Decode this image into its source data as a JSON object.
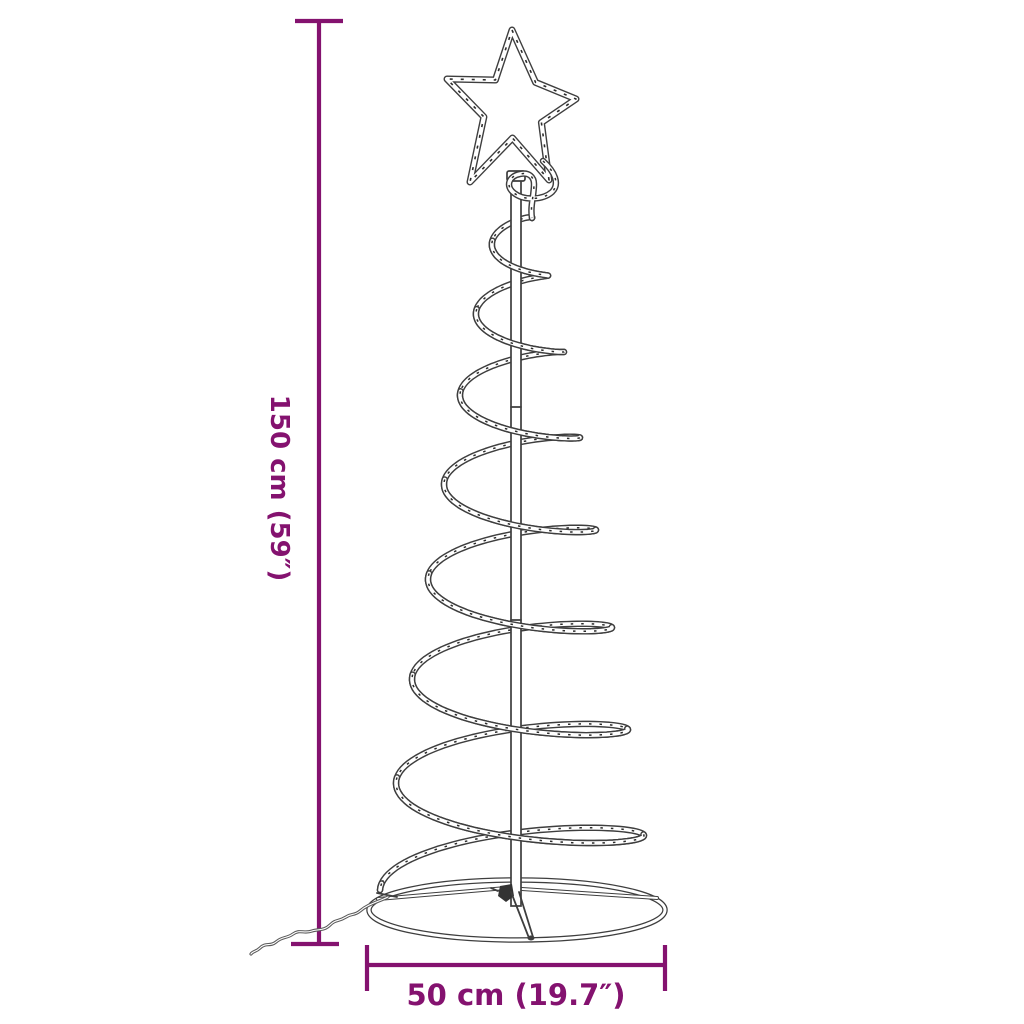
{
  "diagram": {
    "artwork": {
      "name": "spiral-christmas-tree-rope-light-with-star-topper",
      "outline_color": "#3e3e3e"
    },
    "dimensions": {
      "color": "#84126F",
      "height": {
        "label": "150 cm (59″)"
      },
      "width": {
        "label": "50 cm (19.7″)"
      }
    }
  }
}
